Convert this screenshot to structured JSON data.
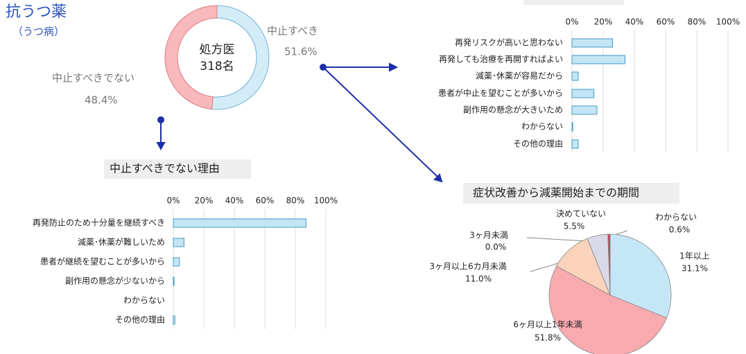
{
  "header": {
    "title": "抗うつ薬",
    "subtitle": "（うつ病）"
  },
  "chart_data": [
    {
      "type": "donut",
      "center_label": [
        "処方医",
        "318名"
      ],
      "categories": [
        "中止すべき",
        "中止すべきでない"
      ],
      "values": [
        51.6,
        48.4
      ],
      "value_labels": [
        "51.6%",
        "48.4%"
      ],
      "colors": [
        "#d3ecf8",
        "#f8b9bc"
      ],
      "stroke_colors": [
        "#6bb3d6",
        "#e07a80"
      ]
    },
    {
      "type": "bar",
      "orientation": "horizontal",
      "categories": [
        "再発リスクが高いと思わない",
        "再発しても治療を再開すればよい",
        "減薬･休薬が容易だから",
        "患者が中止を望むことが多いから",
        "副作用の懸念が大きいため",
        "わからない",
        "その他の理由"
      ],
      "values": [
        26,
        34,
        4,
        14,
        16,
        0.5,
        4
      ],
      "color": "#c4e5f6",
      "xlim": [
        0,
        100
      ],
      "xticks": [
        {
          "value": 0,
          "label": "0%"
        },
        {
          "value": 20,
          "label": "20%"
        },
        {
          "value": 40,
          "label": "40%"
        },
        {
          "value": 60,
          "label": "60%"
        },
        {
          "value": 80,
          "label": "80%"
        },
        {
          "value": 100,
          "label": "100%"
        }
      ],
      "grid": true
    },
    {
      "type": "bar",
      "orientation": "horizontal",
      "title": "中止すべきでない理由",
      "categories": [
        "再発防止のため十分量を継続すべき",
        "減薬･休薬が難しいため",
        "患者が継続を望むことが多いから",
        "副作用の懸念が少ないから",
        "わからない",
        "その他の理由"
      ],
      "values": [
        87,
        7,
        4,
        0.5,
        0,
        1
      ],
      "color": "#c4e5f6",
      "xlim": [
        0,
        100
      ],
      "xticks": [
        {
          "value": 0,
          "label": "0%"
        },
        {
          "value": 20,
          "label": "20%"
        },
        {
          "value": 40,
          "label": "40%"
        },
        {
          "value": 60,
          "label": "60%"
        },
        {
          "value": 80,
          "label": "80%"
        },
        {
          "value": 100,
          "label": "100%"
        }
      ],
      "grid": true
    },
    {
      "type": "pie",
      "title": "症状改善から減薬開始までの期間",
      "categories": [
        "1年以上",
        "6ヶ月以上1年未満",
        "3ヶ月以上6カ月未満",
        "3ヶ月未満",
        "決めていない",
        "わからない"
      ],
      "values": [
        31.1,
        51.8,
        11.0,
        0.0,
        5.5,
        0.6
      ],
      "value_labels": [
        "31.1%",
        "51.8%",
        "11.0%",
        "0.0%",
        "5.5%",
        "0.6%"
      ],
      "colors": [
        "#c5e6f6",
        "#f9aaae",
        "#fbd3bc",
        "#eeeeee",
        "#d9d9e8",
        "#c4405a"
      ]
    }
  ]
}
